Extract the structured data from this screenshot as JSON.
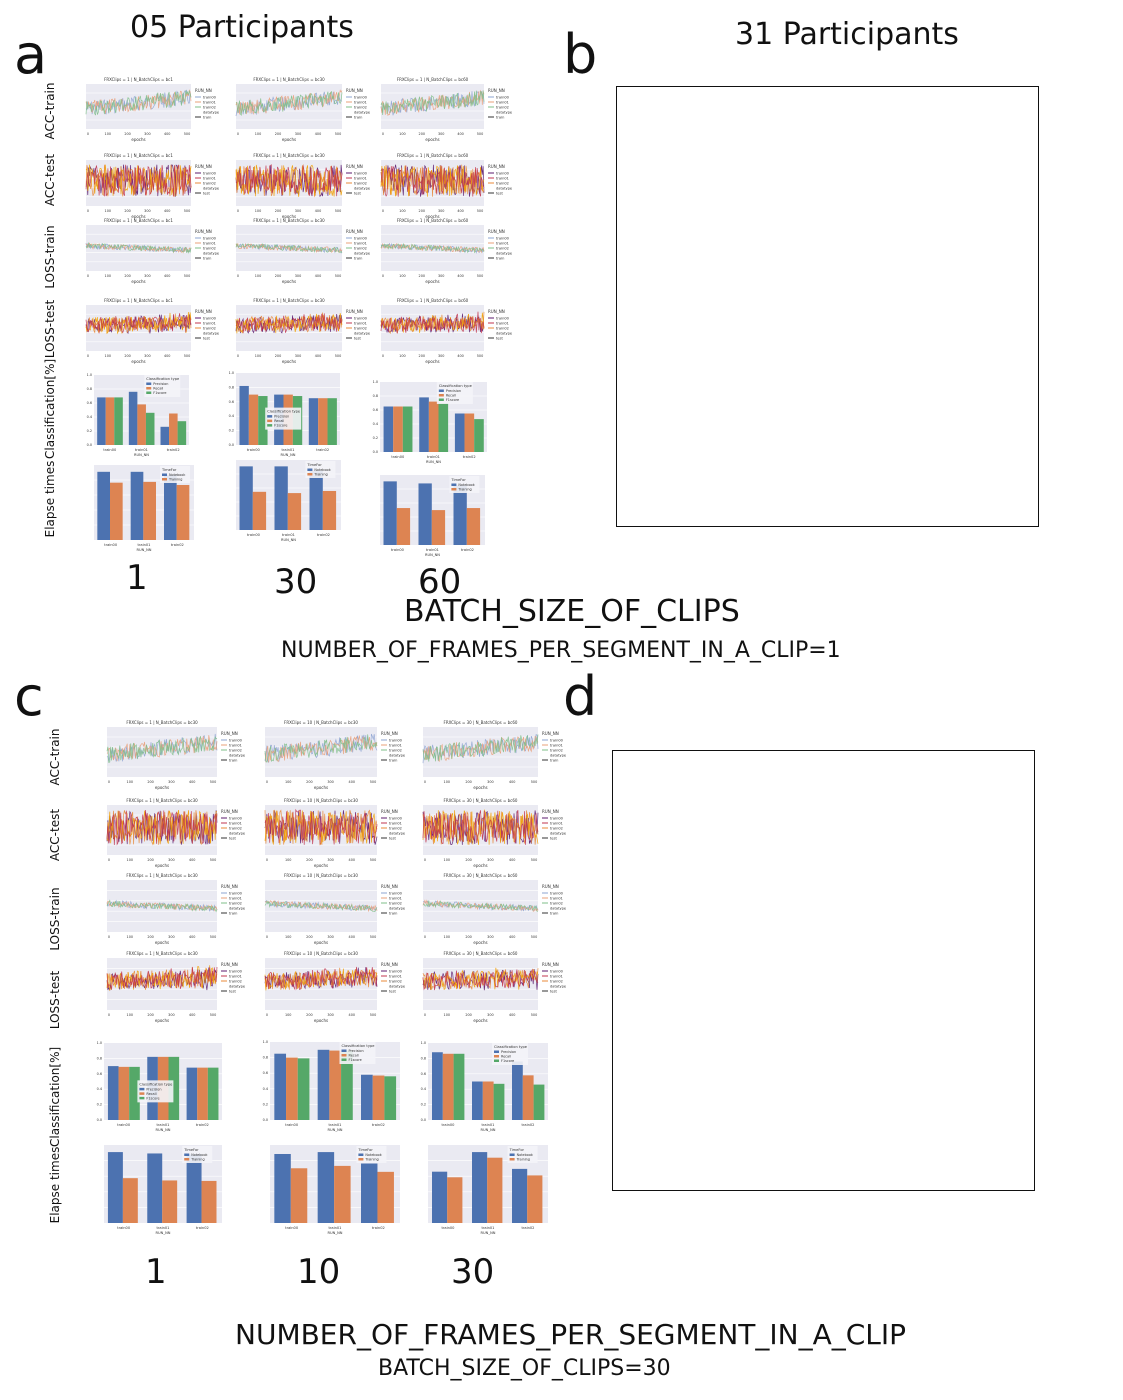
{
  "panels": {
    "a": {
      "letter": "a",
      "heading": "05 Participants"
    },
    "b": {
      "letter": "b",
      "heading": "31 Participants"
    },
    "c": {
      "letter": "c"
    },
    "d": {
      "letter": "d"
    }
  },
  "row_labels": [
    "ACC-train",
    "ACC-test",
    "LOSS-train",
    "LOSS-test",
    "Classification[%]",
    "Elapse times"
  ],
  "top": {
    "column_values": [
      "1",
      "30",
      "60"
    ],
    "x_title": "BATCH_SIZE_OF_CLIPS",
    "x_subtitle": "NUMBER_OF_FRAMES_PER_SEGMENT_IN_A_CLIP=1",
    "subplot_titles": [
      "FRXClips = 1 | N_BatchClips = bc1",
      "FRXClips = 1 | N_BatchClips = bc30",
      "FRXClips = 1 | N_BatchClips = bc60"
    ]
  },
  "bottom": {
    "column_values": [
      "1",
      "10",
      "30"
    ],
    "x_title": "NUMBER_OF_FRAMES_PER_SEGMENT_IN_A_CLIP",
    "x_subtitle": "BATCH_SIZE_OF_CLIPS=30",
    "subplot_titles": [
      "FRXClips = 1 | N_BatchClips = bc30",
      "FRXClips = 10 | N_BatchClips = bc30",
      "FRXClips = 30 | N_BatchClips = bc60"
    ]
  },
  "small_text": {
    "epochs": "epochs",
    "run_nn": "RUN_NN",
    "datatype": "datatype",
    "train": "train",
    "test": "test",
    "class_type": "Classification type",
    "precision": "Precision",
    "recall": "Recall",
    "f1": "F1score",
    "timefor": "TimeFor",
    "notebook": "Notebook",
    "training": "Training"
  },
  "chart_data": [
    {
      "type": "bar",
      "title": "Classification[%] — a",
      "categories": [
        "train00",
        "train01",
        "train02"
      ],
      "series": [
        {
          "name": "Precision",
          "values": [
            [
              0.68,
              0.76,
              0.26
            ],
            [
              0.82,
              0.7,
              0.65
            ],
            [
              0.65,
              0.78,
              0.55
            ]
          ]
        },
        {
          "name": "Recall",
          "values": [
            [
              0.68,
              0.58,
              0.45
            ],
            [
              0.7,
              0.7,
              0.65
            ],
            [
              0.65,
              0.72,
              0.55
            ]
          ]
        },
        {
          "name": "F1score",
          "values": [
            [
              0.68,
              0.46,
              0.34
            ],
            [
              0.68,
              0.68,
              0.65
            ],
            [
              0.65,
              0.7,
              0.47
            ]
          ]
        }
      ],
      "ylim": [
        0,
        1.0
      ]
    },
    {
      "type": "bar",
      "title": "Elapse times — a",
      "categories": [
        "train00",
        "train01",
        "train02"
      ],
      "series": [
        {
          "name": "Notebook",
          "values": [
            [
              440,
              440,
              420
            ],
            [
              150,
              150,
              140
            ],
            [
              155,
              150,
              145
            ]
          ]
        },
        {
          "name": "Training",
          "values": [
            [
              370,
              375,
              355
            ],
            [
              90,
              87,
              92
            ],
            [
              90,
              85,
              90
            ]
          ]
        }
      ]
    },
    {
      "type": "bar",
      "title": "Classification[%] — c",
      "categories": [
        "train00",
        "train01",
        "train02"
      ],
      "series": [
        {
          "name": "Precision",
          "values": [
            [
              0.7,
              0.82,
              0.68
            ],
            [
              0.85,
              0.9,
              0.58
            ],
            [
              0.88,
              0.5,
              0.76
            ]
          ]
        },
        {
          "name": "Recall",
          "values": [
            [
              0.69,
              0.82,
              0.68
            ],
            [
              0.8,
              0.89,
              0.57
            ],
            [
              0.86,
              0.5,
              0.58
            ]
          ]
        },
        {
          "name": "F1score",
          "values": [
            [
              0.69,
              0.82,
              0.68
            ],
            [
              0.79,
              0.89,
              0.56
            ],
            [
              0.86,
              0.47,
              0.46
            ]
          ]
        }
      ],
      "ylim": [
        0,
        1.0
      ]
    },
    {
      "type": "bar",
      "title": "Elapse times — c",
      "categories": [
        "train00",
        "train01",
        "train02"
      ],
      "series": [
        {
          "name": "Notebook",
          "values": [
            [
              155,
              152,
              150
            ],
            [
              290,
              298,
              250
            ],
            [
              550,
              760,
              580
            ]
          ]
        },
        {
          "name": "Training",
          "values": [
            [
              98,
              93,
              92
            ],
            [
              230,
              240,
              215
            ],
            [
              490,
              700,
              510
            ]
          ]
        }
      ]
    }
  ]
}
